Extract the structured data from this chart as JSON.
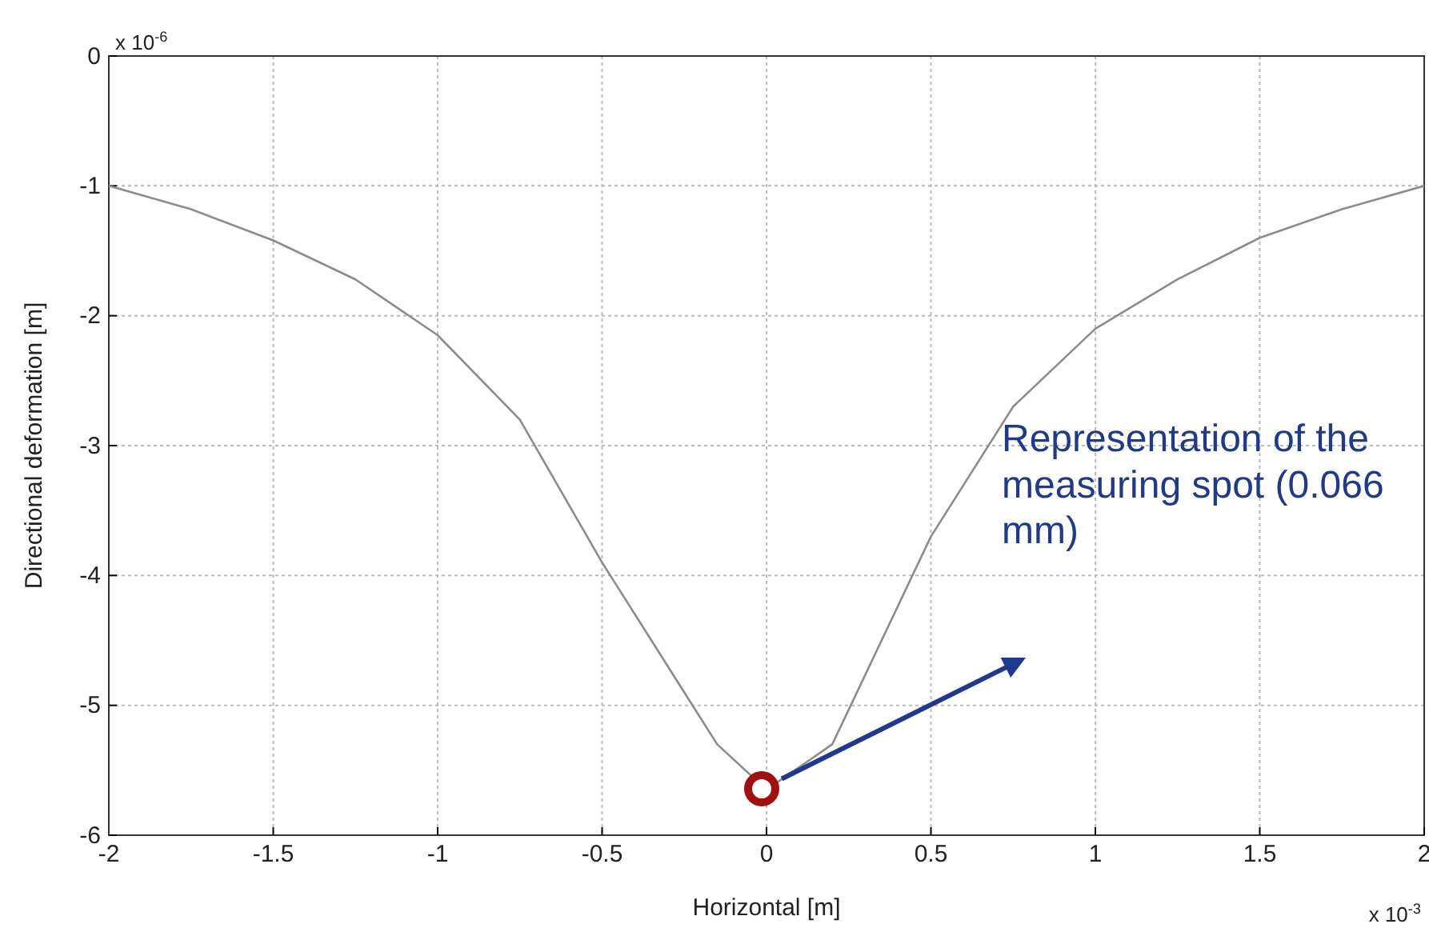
{
  "chart_data": {
    "type": "line",
    "xlabel": "Horizontal [m]",
    "ylabel": "Directional deformation [m]",
    "x": [
      -2,
      -1.75,
      -1.5,
      -1.25,
      -1,
      -0.75,
      -0.5,
      -0.25,
      -0.15,
      0,
      0.2,
      0.5,
      0.75,
      1,
      1.25,
      1.5,
      1.75,
      2
    ],
    "series": [
      {
        "color": "#8c8c8c",
        "values": [
          -1.0,
          -1.18,
          -1.42,
          -1.72,
          -2.15,
          -2.8,
          -3.9,
          -4.9,
          -5.3,
          -5.65,
          -5.3,
          -3.7,
          -2.7,
          -2.1,
          -1.72,
          -1.4,
          -1.18,
          -1.0
        ]
      }
    ],
    "xlim": [
      -2,
      2
    ],
    "ylim": [
      -6,
      0
    ],
    "xticks": [
      -2,
      -1.5,
      -1,
      -0.5,
      0,
      0.5,
      1,
      1.5,
      2
    ],
    "yticks": [
      -6,
      -5,
      -4,
      -3,
      -2,
      -1,
      0
    ],
    "grid": true,
    "line_style": "solid",
    "marker": "none",
    "annotations": [
      "x 10$^{-3}$",
      "x 10$^{-6}$",
      "Representation of the measuring spot (0.066 mm)"
    ]
  }
}
